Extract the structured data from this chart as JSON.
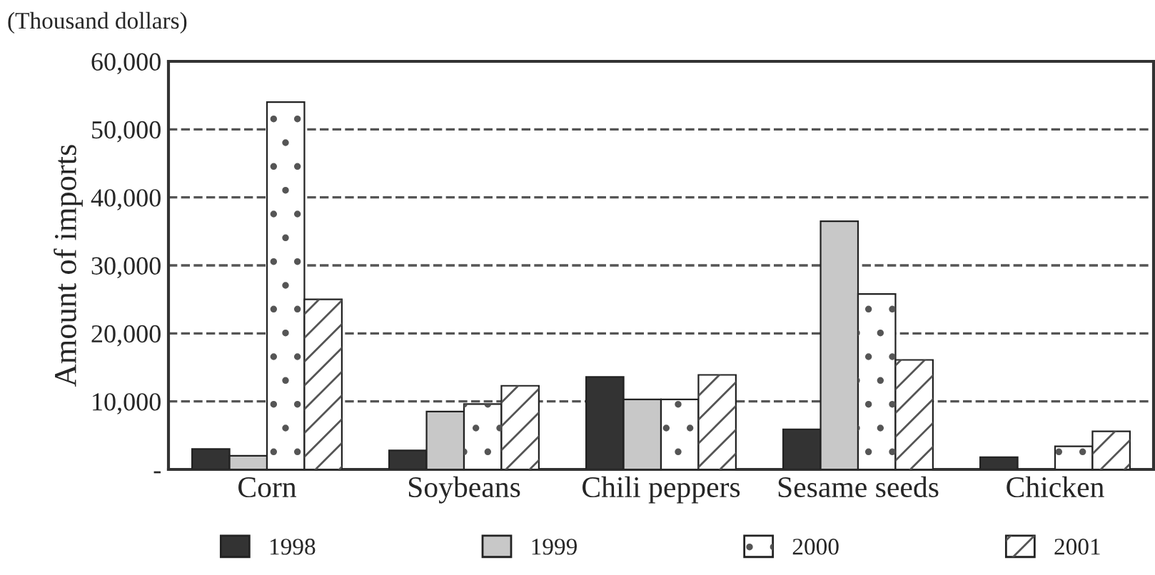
{
  "chart_data": {
    "type": "bar",
    "ylabel": "Amount of imports",
    "annotations": [
      "(Thousand dollars)"
    ],
    "categories": [
      "Corn",
      "Soybeans",
      "Chili peppers",
      "Sesame seeds",
      "Chicken"
    ],
    "series": [
      {
        "name": "1998",
        "color": "#333333",
        "values": [
          3000,
          2800,
          13600,
          5900,
          1800
        ]
      },
      {
        "name": "1999",
        "color": "#c8c8c8",
        "values": [
          2000,
          8500,
          10300,
          36500,
          null
        ]
      },
      {
        "name": "2000",
        "color": "#ffffff",
        "values": [
          54000,
          9600,
          10300,
          25800,
          3400
        ]
      },
      {
        "name": "2001",
        "color": "#ffffff",
        "values": [
          25000,
          12300,
          13900,
          16100,
          5600
        ]
      }
    ],
    "ylim": [
      0,
      60000
    ],
    "yticks": [
      {
        "value": 0,
        "label": "-"
      },
      {
        "value": 10000,
        "label": "10,000"
      },
      {
        "value": 20000,
        "label": "20,000"
      },
      {
        "value": 30000,
        "label": "30,000"
      },
      {
        "value": 40000,
        "label": "40,000"
      },
      {
        "value": 50000,
        "label": "50,000"
      },
      {
        "value": 60000,
        "label": "60,000"
      }
    ],
    "grid": "y",
    "legend": "bottom"
  }
}
